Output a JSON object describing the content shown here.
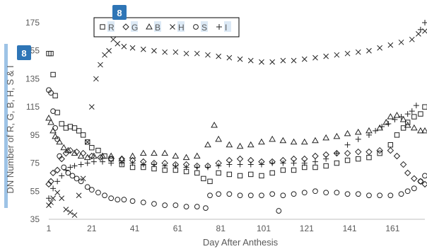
{
  "chart_data": {
    "type": "scatter",
    "title": "",
    "xlabel": "Day After Anthesis",
    "ylabel": "DN Number of R, G, B, H, S & I",
    "xlim": [
      1,
      176
    ],
    "ylim": [
      35,
      175
    ],
    "xticks": [
      1,
      21,
      41,
      61,
      81,
      101,
      121,
      141,
      161
    ],
    "yticks": [
      35,
      55,
      75,
      95,
      115,
      135,
      155,
      175
    ],
    "grid": false,
    "legend_position": "top-left",
    "series": [
      {
        "name": "R",
        "marker": "square",
        "points": [
          [
            1,
            153
          ],
          [
            2,
            153
          ],
          [
            3,
            138
          ],
          [
            4,
            123
          ],
          [
            5,
            111
          ],
          [
            7,
            103
          ],
          [
            9,
            100
          ],
          [
            11,
            101
          ],
          [
            13,
            100
          ],
          [
            15,
            98
          ],
          [
            17,
            95
          ],
          [
            19,
            90
          ],
          [
            21,
            86
          ],
          [
            24,
            84
          ],
          [
            27,
            80
          ],
          [
            30,
            78
          ],
          [
            35,
            74
          ],
          [
            40,
            72
          ],
          [
            45,
            72
          ],
          [
            50,
            71
          ],
          [
            55,
            70
          ],
          [
            60,
            70
          ],
          [
            65,
            69
          ],
          [
            70,
            68
          ],
          [
            73,
            64
          ],
          [
            76,
            62
          ],
          [
            80,
            68
          ],
          [
            85,
            67
          ],
          [
            90,
            66
          ],
          [
            95,
            67
          ],
          [
            100,
            66
          ],
          [
            105,
            68
          ],
          [
            110,
            70
          ],
          [
            115,
            70
          ],
          [
            120,
            72
          ],
          [
            125,
            72
          ],
          [
            130,
            73
          ],
          [
            135,
            75
          ],
          [
            140,
            77
          ],
          [
            145,
            78
          ],
          [
            150,
            79
          ],
          [
            155,
            82
          ],
          [
            160,
            88
          ],
          [
            163,
            95
          ],
          [
            166,
            100
          ],
          [
            168,
            104
          ],
          [
            171,
            108
          ],
          [
            174,
            110
          ],
          [
            176,
            115
          ]
        ]
      },
      {
        "name": "G",
        "marker": "diamond",
        "points": [
          [
            1,
            60
          ],
          [
            2,
            62
          ],
          [
            3,
            68
          ],
          [
            5,
            70
          ],
          [
            7,
            78
          ],
          [
            9,
            82
          ],
          [
            11,
            84
          ],
          [
            14,
            83
          ],
          [
            17,
            82
          ],
          [
            21,
            80
          ],
          [
            25,
            79
          ],
          [
            30,
            78
          ],
          [
            35,
            78
          ],
          [
            40,
            77
          ],
          [
            45,
            76
          ],
          [
            50,
            75
          ],
          [
            55,
            75
          ],
          [
            60,
            74
          ],
          [
            65,
            74
          ],
          [
            70,
            73
          ],
          [
            75,
            73
          ],
          [
            80,
            75
          ],
          [
            85,
            77
          ],
          [
            90,
            78
          ],
          [
            95,
            77
          ],
          [
            100,
            76
          ],
          [
            105,
            76
          ],
          [
            110,
            77
          ],
          [
            115,
            78
          ],
          [
            120,
            78
          ],
          [
            125,
            80
          ],
          [
            130,
            81
          ],
          [
            135,
            82
          ],
          [
            140,
            82
          ],
          [
            145,
            83
          ],
          [
            150,
            83
          ],
          [
            155,
            84
          ],
          [
            160,
            84
          ],
          [
            163,
            80
          ],
          [
            166,
            74
          ],
          [
            168,
            68
          ],
          [
            171,
            64
          ],
          [
            174,
            62
          ],
          [
            176,
            60
          ]
        ]
      },
      {
        "name": "B",
        "marker": "triangle",
        "points": [
          [
            1,
            107
          ],
          [
            2,
            104
          ],
          [
            3,
            98
          ],
          [
            4,
            94
          ],
          [
            6,
            90
          ],
          [
            8,
            86
          ],
          [
            10,
            84
          ],
          [
            13,
            82
          ],
          [
            16,
            80
          ],
          [
            19,
            79
          ],
          [
            22,
            80
          ],
          [
            26,
            80
          ],
          [
            30,
            80
          ],
          [
            35,
            78
          ],
          [
            40,
            80
          ],
          [
            45,
            82
          ],
          [
            50,
            82
          ],
          [
            55,
            82
          ],
          [
            60,
            80
          ],
          [
            65,
            79
          ],
          [
            70,
            80
          ],
          [
            75,
            88
          ],
          [
            78,
            102
          ],
          [
            80,
            92
          ],
          [
            85,
            88
          ],
          [
            90,
            87
          ],
          [
            95,
            88
          ],
          [
            100,
            90
          ],
          [
            105,
            92
          ],
          [
            110,
            91
          ],
          [
            115,
            90
          ],
          [
            120,
            90
          ],
          [
            125,
            91
          ],
          [
            130,
            93
          ],
          [
            135,
            94
          ],
          [
            140,
            96
          ],
          [
            145,
            97
          ],
          [
            150,
            98
          ],
          [
            155,
            100
          ],
          [
            158,
            104
          ],
          [
            160,
            108
          ],
          [
            163,
            109
          ],
          [
            166,
            106
          ],
          [
            168,
            102
          ],
          [
            171,
            100
          ],
          [
            174,
            98
          ],
          [
            176,
            98
          ]
        ]
      },
      {
        "name": "H",
        "marker": "x",
        "points": [
          [
            1,
            45
          ],
          [
            2,
            47
          ],
          [
            3,
            50
          ],
          [
            5,
            54
          ],
          [
            7,
            50
          ],
          [
            9,
            42
          ],
          [
            11,
            40
          ],
          [
            13,
            38
          ],
          [
            15,
            52
          ],
          [
            17,
            64
          ],
          [
            19,
            90
          ],
          [
            21,
            115
          ],
          [
            23,
            135
          ],
          [
            25,
            145
          ],
          [
            27,
            152
          ],
          [
            29,
            155
          ],
          [
            31,
            163
          ],
          [
            33,
            160
          ],
          [
            36,
            158
          ],
          [
            40,
            157
          ],
          [
            45,
            156
          ],
          [
            50,
            155
          ],
          [
            55,
            154
          ],
          [
            60,
            154
          ],
          [
            65,
            153
          ],
          [
            70,
            153
          ],
          [
            75,
            152
          ],
          [
            80,
            151
          ],
          [
            85,
            150
          ],
          [
            90,
            149
          ],
          [
            95,
            148
          ],
          [
            100,
            147
          ],
          [
            105,
            147
          ],
          [
            110,
            148
          ],
          [
            115,
            148
          ],
          [
            120,
            149
          ],
          [
            125,
            150
          ],
          [
            130,
            151
          ],
          [
            135,
            152
          ],
          [
            140,
            153
          ],
          [
            145,
            154
          ],
          [
            150,
            155
          ],
          [
            155,
            157
          ],
          [
            160,
            159
          ],
          [
            165,
            161
          ],
          [
            170,
            163
          ],
          [
            173,
            167
          ],
          [
            176,
            169
          ]
        ]
      },
      {
        "name": "S",
        "marker": "circle",
        "points": [
          [
            1,
            127
          ],
          [
            2,
            125
          ],
          [
            3,
            112
          ],
          [
            4,
            100
          ],
          [
            5,
            92
          ],
          [
            6,
            80
          ],
          [
            8,
            72
          ],
          [
            10,
            68
          ],
          [
            12,
            66
          ],
          [
            14,
            64
          ],
          [
            16,
            62
          ],
          [
            19,
            58
          ],
          [
            21,
            56
          ],
          [
            24,
            54
          ],
          [
            27,
            52
          ],
          [
            30,
            50
          ],
          [
            33,
            49
          ],
          [
            36,
            49
          ],
          [
            40,
            48
          ],
          [
            45,
            47
          ],
          [
            50,
            46
          ],
          [
            55,
            45
          ],
          [
            60,
            45
          ],
          [
            65,
            44
          ],
          [
            70,
            44
          ],
          [
            74,
            43
          ],
          [
            76,
            52
          ],
          [
            80,
            53
          ],
          [
            85,
            53
          ],
          [
            90,
            52
          ],
          [
            95,
            52
          ],
          [
            100,
            52
          ],
          [
            105,
            53
          ],
          [
            108,
            41
          ],
          [
            110,
            52
          ],
          [
            115,
            53
          ],
          [
            120,
            54
          ],
          [
            125,
            55
          ],
          [
            130,
            54
          ],
          [
            135,
            54
          ],
          [
            140,
            53
          ],
          [
            145,
            53
          ],
          [
            150,
            52
          ],
          [
            155,
            52
          ],
          [
            160,
            52
          ],
          [
            165,
            53
          ],
          [
            168,
            55
          ],
          [
            171,
            57
          ],
          [
            174,
            62
          ],
          [
            176,
            66
          ]
        ]
      },
      {
        "name": "I",
        "marker": "plus",
        "points": [
          [
            1,
            50
          ],
          [
            3,
            57
          ],
          [
            5,
            62
          ],
          [
            7,
            66
          ],
          [
            9,
            70
          ],
          [
            11,
            72
          ],
          [
            13,
            73
          ],
          [
            16,
            74
          ],
          [
            19,
            75
          ],
          [
            22,
            76
          ],
          [
            26,
            76
          ],
          [
            30,
            75
          ],
          [
            35,
            75
          ],
          [
            40,
            75
          ],
          [
            45,
            74
          ],
          [
            50,
            74
          ],
          [
            55,
            73
          ],
          [
            60,
            73
          ],
          [
            65,
            72
          ],
          [
            70,
            72
          ],
          [
            75,
            72
          ],
          [
            80,
            73
          ],
          [
            85,
            74
          ],
          [
            90,
            74
          ],
          [
            95,
            74
          ],
          [
            100,
            74
          ],
          [
            105,
            75
          ],
          [
            110,
            75
          ],
          [
            115,
            75
          ],
          [
            120,
            75
          ],
          [
            125,
            76
          ],
          [
            130,
            78
          ],
          [
            135,
            82
          ],
          [
            140,
            88
          ],
          [
            145,
            92
          ],
          [
            150,
            95
          ],
          [
            153,
            98
          ],
          [
            156,
            101
          ],
          [
            159,
            103
          ],
          [
            162,
            106
          ],
          [
            165,
            108
          ],
          [
            168,
            110
          ],
          [
            170,
            112
          ],
          [
            172,
            116
          ],
          [
            174,
            170
          ],
          [
            176,
            175
          ]
        ]
      }
    ]
  },
  "badges": {
    "legend_badge": "8",
    "axis_badge": "8"
  }
}
